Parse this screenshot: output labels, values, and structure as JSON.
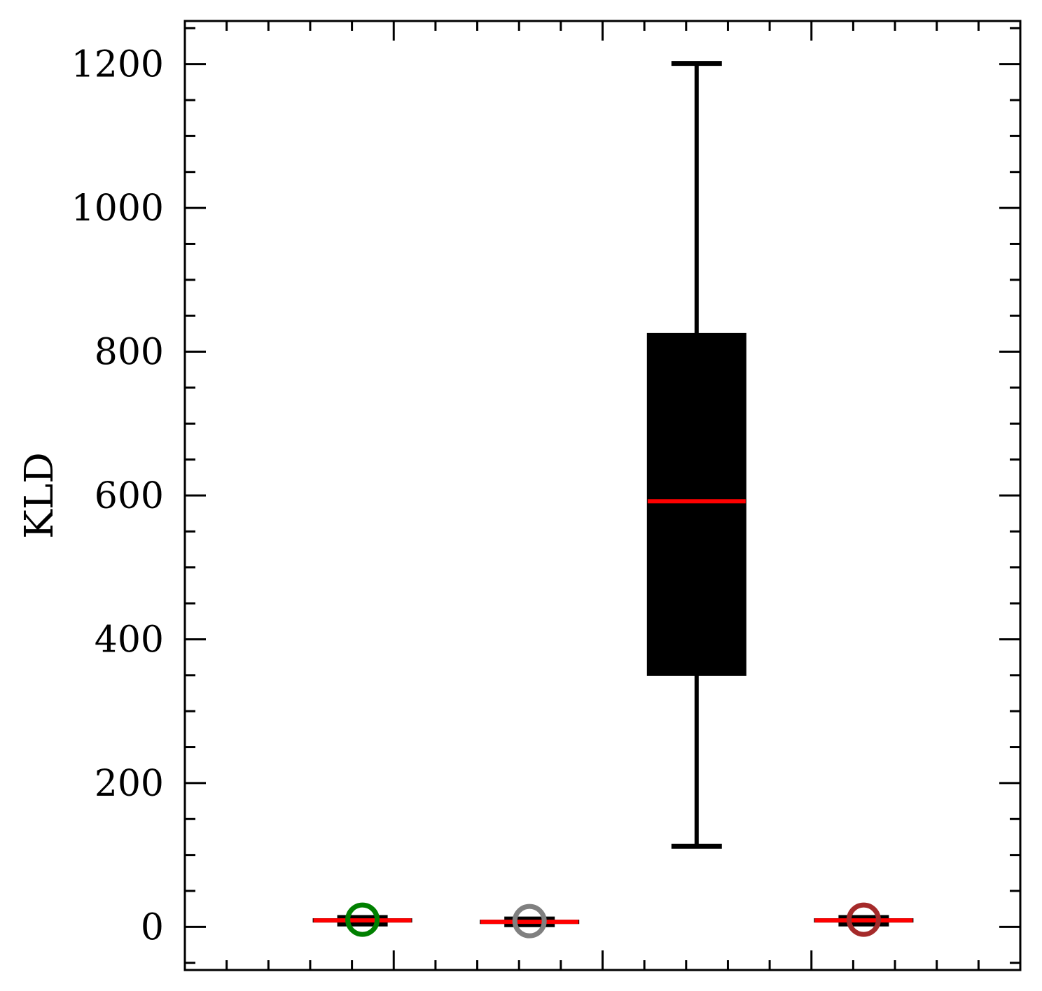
{
  "chart_data": {
    "type": "boxplot",
    "ylabel": "KLD",
    "ylim": [
      -60,
      1260
    ],
    "yticks": [
      0,
      200,
      400,
      600,
      800,
      1000,
      1200
    ],
    "grid": false,
    "boxes": [
      {
        "stats": {
          "whislo": 4,
          "q1": 7,
          "med": 9,
          "q3": 11,
          "whishi": 13
        },
        "fliers": [
          10
        ],
        "color": "#000000",
        "median_color": "#ff0000",
        "flier_color": "#008000"
      },
      {
        "stats": {
          "whislo": 3,
          "q1": 5,
          "med": 7,
          "q3": 9,
          "whishi": 11
        },
        "fliers": [
          8
        ],
        "color": "#000000",
        "median_color": "#ff0000",
        "flier_color": "#808080"
      },
      {
        "stats": {
          "whislo": 112,
          "q1": 350,
          "med": 592,
          "q3": 825,
          "whishi": 1201
        },
        "fliers": [],
        "color": "#000000",
        "median_color": "#ff0000",
        "flier_color": "#000000"
      },
      {
        "stats": {
          "whislo": 4,
          "q1": 7,
          "med": 9,
          "q3": 11,
          "whishi": 13
        },
        "fliers": [
          10
        ],
        "color": "#000000",
        "median_color": "#ff0000",
        "flier_color": "#a52a2a"
      }
    ]
  }
}
